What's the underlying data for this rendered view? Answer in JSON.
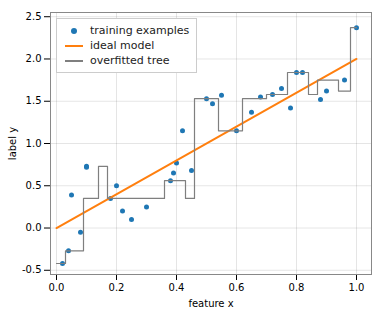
{
  "chart_data": {
    "type": "line",
    "xlabel": "feature x",
    "ylabel": "label y",
    "xlim": [
      -0.02,
      1.05
    ],
    "ylim": [
      -0.55,
      2.55
    ],
    "xticks": [
      {
        "value": 0.0,
        "label": "0.0"
      },
      0.2,
      0.4,
      0.6,
      0.8,
      {
        "value": 1.0,
        "label": "1.0"
      }
    ],
    "yticks": [
      -0.5,
      {
        "value": 0.0,
        "label": "0.0"
      },
      0.5,
      {
        "value": 1.0,
        "label": "1.0"
      },
      1.5,
      {
        "value": 2.0,
        "label": "2.0"
      },
      2.5
    ],
    "grid": true,
    "legend": "upper left",
    "series": [
      {
        "name": "training examples",
        "type": "scatter",
        "color": "#1f77b4",
        "marker": "point",
        "x": [
          0.02,
          0.04,
          0.05,
          0.08,
          0.1,
          0.1,
          0.18,
          0.2,
          0.22,
          0.25,
          0.3,
          0.38,
          0.39,
          0.4,
          0.42,
          0.45,
          0.5,
          0.52,
          0.55,
          0.6,
          0.65,
          0.68,
          0.72,
          0.75,
          0.78,
          0.8,
          0.82,
          0.88,
          0.9,
          0.96,
          1.0
        ],
        "values": [
          -0.42,
          -0.27,
          0.39,
          -0.05,
          0.73,
          0.72,
          0.35,
          0.5,
          0.2,
          0.1,
          0.25,
          0.56,
          0.65,
          0.77,
          1.15,
          0.68,
          1.53,
          1.47,
          1.57,
          1.15,
          1.37,
          1.55,
          1.58,
          1.65,
          1.42,
          1.84,
          1.84,
          1.52,
          1.62,
          1.75,
          2.37
        ]
      },
      {
        "name": "ideal model",
        "type": "line",
        "color": "#ff7f0e",
        "line_style": "solid",
        "x": [
          0.0,
          1.0
        ],
        "values": [
          0.0,
          2.0
        ]
      },
      {
        "name": "overfitted tree",
        "type": "line",
        "color": "#7f7f7f",
        "line_style": "solid",
        "x": [
          0.0,
          0.03,
          0.03,
          0.09,
          0.09,
          0.14,
          0.14,
          0.17,
          0.17,
          0.36,
          0.36,
          0.43,
          0.43,
          0.46,
          0.46,
          0.54,
          0.54,
          0.62,
          0.62,
          0.7,
          0.7,
          0.77,
          0.77,
          0.84,
          0.84,
          0.87,
          0.87,
          0.94,
          0.94,
          0.98,
          0.98,
          1.0
        ],
        "values": [
          -0.42,
          -0.42,
          -0.27,
          -0.27,
          0.35,
          0.35,
          0.73,
          0.73,
          0.35,
          0.35,
          0.56,
          0.56,
          0.35,
          0.35,
          1.53,
          1.53,
          1.15,
          1.15,
          1.53,
          1.53,
          1.58,
          1.58,
          1.84,
          1.84,
          1.58,
          1.58,
          1.75,
          1.75,
          1.62,
          1.62,
          2.37,
          2.37
        ]
      }
    ]
  }
}
